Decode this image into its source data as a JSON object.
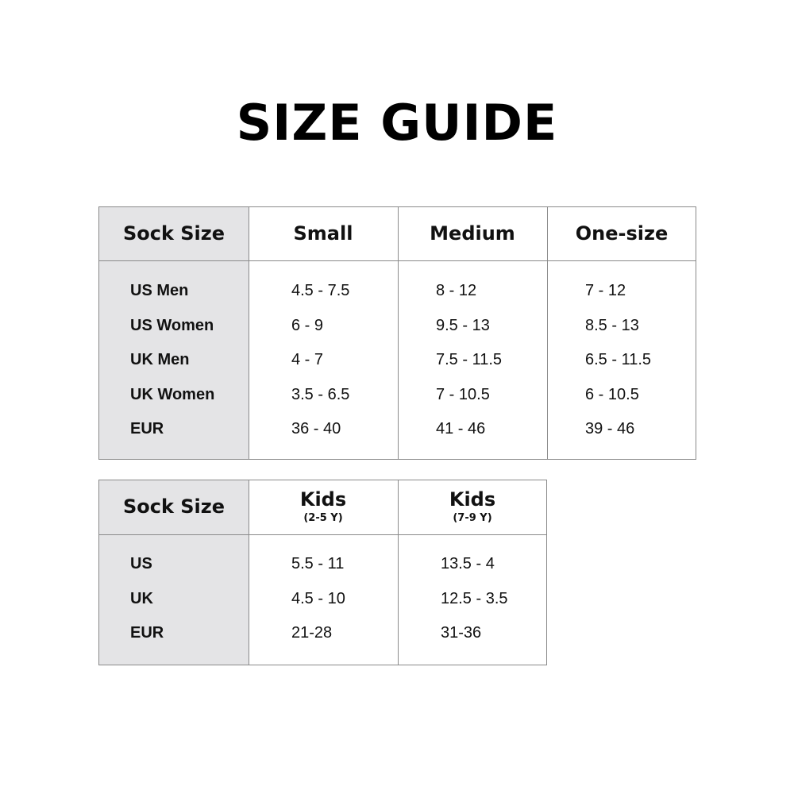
{
  "title": "SIZE GUIDE",
  "table_adult": {
    "headers": [
      "Sock Size",
      "Small",
      "Medium",
      "One-size"
    ],
    "rows": [
      {
        "label": "US Men",
        "values": [
          "4.5 - 7.5",
          "8 - 12",
          "7 - 12"
        ]
      },
      {
        "label": "US Women",
        "values": [
          "6 - 9",
          "9.5 - 13",
          "8.5 - 13"
        ]
      },
      {
        "label": "UK Men",
        "values": [
          "4 - 7",
          "7.5 - 11.5",
          "6.5 - 11.5"
        ]
      },
      {
        "label": "UK Women",
        "values": [
          "3.5 - 6.5",
          "7 - 10.5",
          "6 - 10.5"
        ]
      },
      {
        "label": "EUR",
        "values": [
          "36 - 40",
          "41 - 46",
          "39 - 46"
        ]
      }
    ]
  },
  "table_kids": {
    "headers": [
      {
        "label": "Sock Size"
      },
      {
        "label": "Kids",
        "sub": "(2-5 Y)"
      },
      {
        "label": "Kids",
        "sub": "(7-9 Y)"
      }
    ],
    "rows": [
      {
        "label": "US",
        "values": [
          "5.5 - 11",
          "13.5 - 4"
        ]
      },
      {
        "label": "UK",
        "values": [
          "4.5 - 10",
          "12.5 - 3.5"
        ]
      },
      {
        "label": "EUR",
        "values": [
          "21-28",
          "31-36"
        ]
      }
    ]
  },
  "colors": {
    "label_column": "#e4e4e6",
    "border": "#8a8a8a"
  }
}
